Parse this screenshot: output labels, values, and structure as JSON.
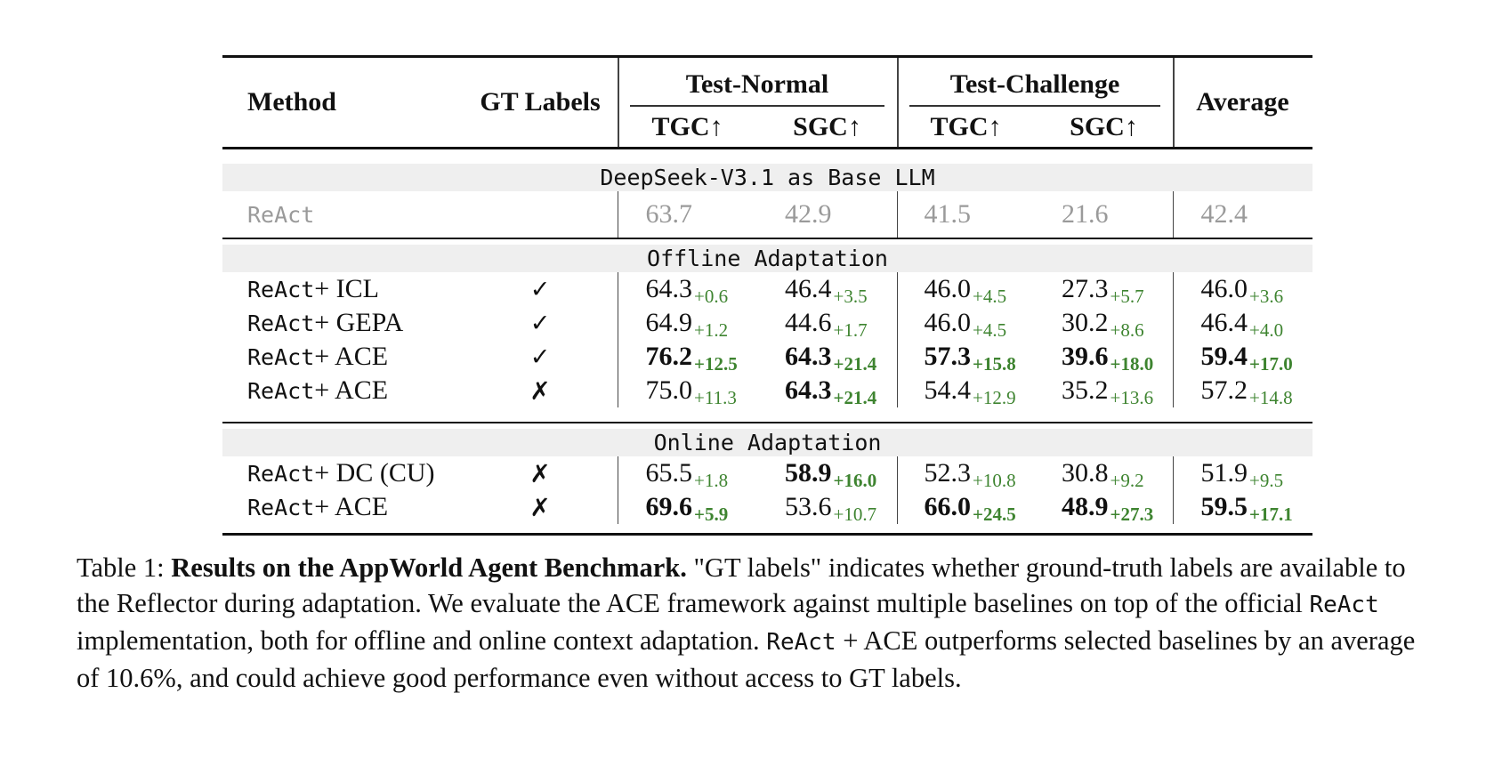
{
  "table": {
    "headers": {
      "method": "Method",
      "gt_labels": "GT Labels",
      "group1": "Test-Normal",
      "group2": "Test-Challenge",
      "average": "Average",
      "sub_cols": [
        "TGC↑",
        "SGC↑",
        "TGC↑",
        "SGC↑"
      ]
    },
    "symbols": {
      "check": "✓",
      "cross": "✗",
      "none": ""
    },
    "sections": [
      {
        "band": "DeepSeek-V3.1 as Base LLM",
        "rule_after": true,
        "rows": [
          {
            "method_mono": "ReAct",
            "method_rest": "",
            "gt": "none",
            "muted": true,
            "tall": true,
            "cells": [
              {
                "main": "63.7",
                "sub": ""
              },
              {
                "main": "42.9",
                "sub": ""
              },
              {
                "main": "41.5",
                "sub": ""
              },
              {
                "main": "21.6",
                "sub": ""
              },
              {
                "main": "42.4",
                "sub": ""
              }
            ]
          }
        ]
      },
      {
        "band": "Offline Adaptation",
        "rule_after": true,
        "rows": [
          {
            "method_mono": "ReAct",
            "method_rest": " + ICL",
            "gt": "check",
            "muted": false,
            "tall": false,
            "cells": [
              {
                "main": "64.3",
                "sub": "+0.6"
              },
              {
                "main": "46.4",
                "sub": "+3.5"
              },
              {
                "main": "46.0",
                "sub": "+4.5"
              },
              {
                "main": "27.3",
                "sub": "+5.7"
              },
              {
                "main": "46.0",
                "sub": "+3.6"
              }
            ]
          },
          {
            "method_mono": "ReAct",
            "method_rest": " + GEPA",
            "gt": "check",
            "muted": false,
            "tall": false,
            "cells": [
              {
                "main": "64.9",
                "sub": "+1.2"
              },
              {
                "main": "44.6",
                "sub": "+1.7"
              },
              {
                "main": "46.0",
                "sub": "+4.5"
              },
              {
                "main": "30.2",
                "sub": "+8.6"
              },
              {
                "main": "46.4",
                "sub": "+4.0"
              }
            ]
          },
          {
            "method_mono": "ReAct",
            "method_rest": " + ACE",
            "gt": "check",
            "muted": false,
            "tall": false,
            "cells": [
              {
                "main": "76.2",
                "sub": "+12.5",
                "bold": true
              },
              {
                "main": "64.3",
                "sub": "+21.4",
                "bold": true
              },
              {
                "main": "57.3",
                "sub": "+15.8",
                "bold": true
              },
              {
                "main": "39.6",
                "sub": "+18.0",
                "bold": true
              },
              {
                "main": "59.4",
                "sub": "+17.0",
                "bold": true
              }
            ]
          },
          {
            "method_mono": "ReAct",
            "method_rest": " + ACE",
            "gt": "cross",
            "muted": false,
            "tall": false,
            "cells": [
              {
                "main": "75.0",
                "sub": "+11.3"
              },
              {
                "main": "64.3",
                "sub": "+21.4",
                "bold": true
              },
              {
                "main": "54.4",
                "sub": "+12.9"
              },
              {
                "main": "35.2",
                "sub": "+13.6"
              },
              {
                "main": "57.2",
                "sub": "+14.8"
              }
            ]
          }
        ]
      },
      {
        "band": "Online Adaptation",
        "rule_after": false,
        "rows": [
          {
            "method_mono": "ReAct",
            "method_rest": " + DC (CU)",
            "gt": "cross",
            "muted": false,
            "tall": false,
            "cells": [
              {
                "main": "65.5",
                "sub": "+1.8"
              },
              {
                "main": "58.9",
                "sub": "+16.0",
                "bold": true
              },
              {
                "main": "52.3",
                "sub": "+10.8"
              },
              {
                "main": "30.8",
                "sub": "+9.2"
              },
              {
                "main": "51.9",
                "sub": "+9.5"
              }
            ]
          },
          {
            "method_mono": "ReAct",
            "method_rest": " + ACE",
            "gt": "cross",
            "muted": false,
            "tall": false,
            "cells": [
              {
                "main": "69.6",
                "sub": "+5.9",
                "bold": true
              },
              {
                "main": "53.6",
                "sub": "+10.7"
              },
              {
                "main": "66.0",
                "sub": "+24.5",
                "bold": true
              },
              {
                "main": "48.9",
                "sub": "+27.3",
                "bold": true
              },
              {
                "main": "59.5",
                "sub": "+17.1",
                "bold": true
              }
            ]
          }
        ]
      }
    ]
  },
  "caption": {
    "segments": [
      {
        "text": "Table 1: ",
        "style": "plain"
      },
      {
        "text": "Results on the AppWorld Agent Benchmark.",
        "style": "bold"
      },
      {
        "text": " \"GT labels\" indicates whether ground-truth labels are available to the Reflector during adaptation. We evaluate the ACE framework against multiple baselines on top of the official ",
        "style": "plain"
      },
      {
        "text": "ReAct",
        "style": "mono"
      },
      {
        "text": " implementation, both for offline and online context adaptation. ",
        "style": "plain"
      },
      {
        "text": "ReAct",
        "style": "mono"
      },
      {
        "text": " + ACE outperforms selected baselines by an average of 10.6%, and could achieve good performance even without access to GT labels.",
        "style": "plain"
      }
    ]
  },
  "colors": {
    "positive_green": "#3e8430",
    "band_gray": "#efefef",
    "muted_text": "#9a9a9a",
    "rule_black": "#111111",
    "divider_gray": "#444444"
  }
}
